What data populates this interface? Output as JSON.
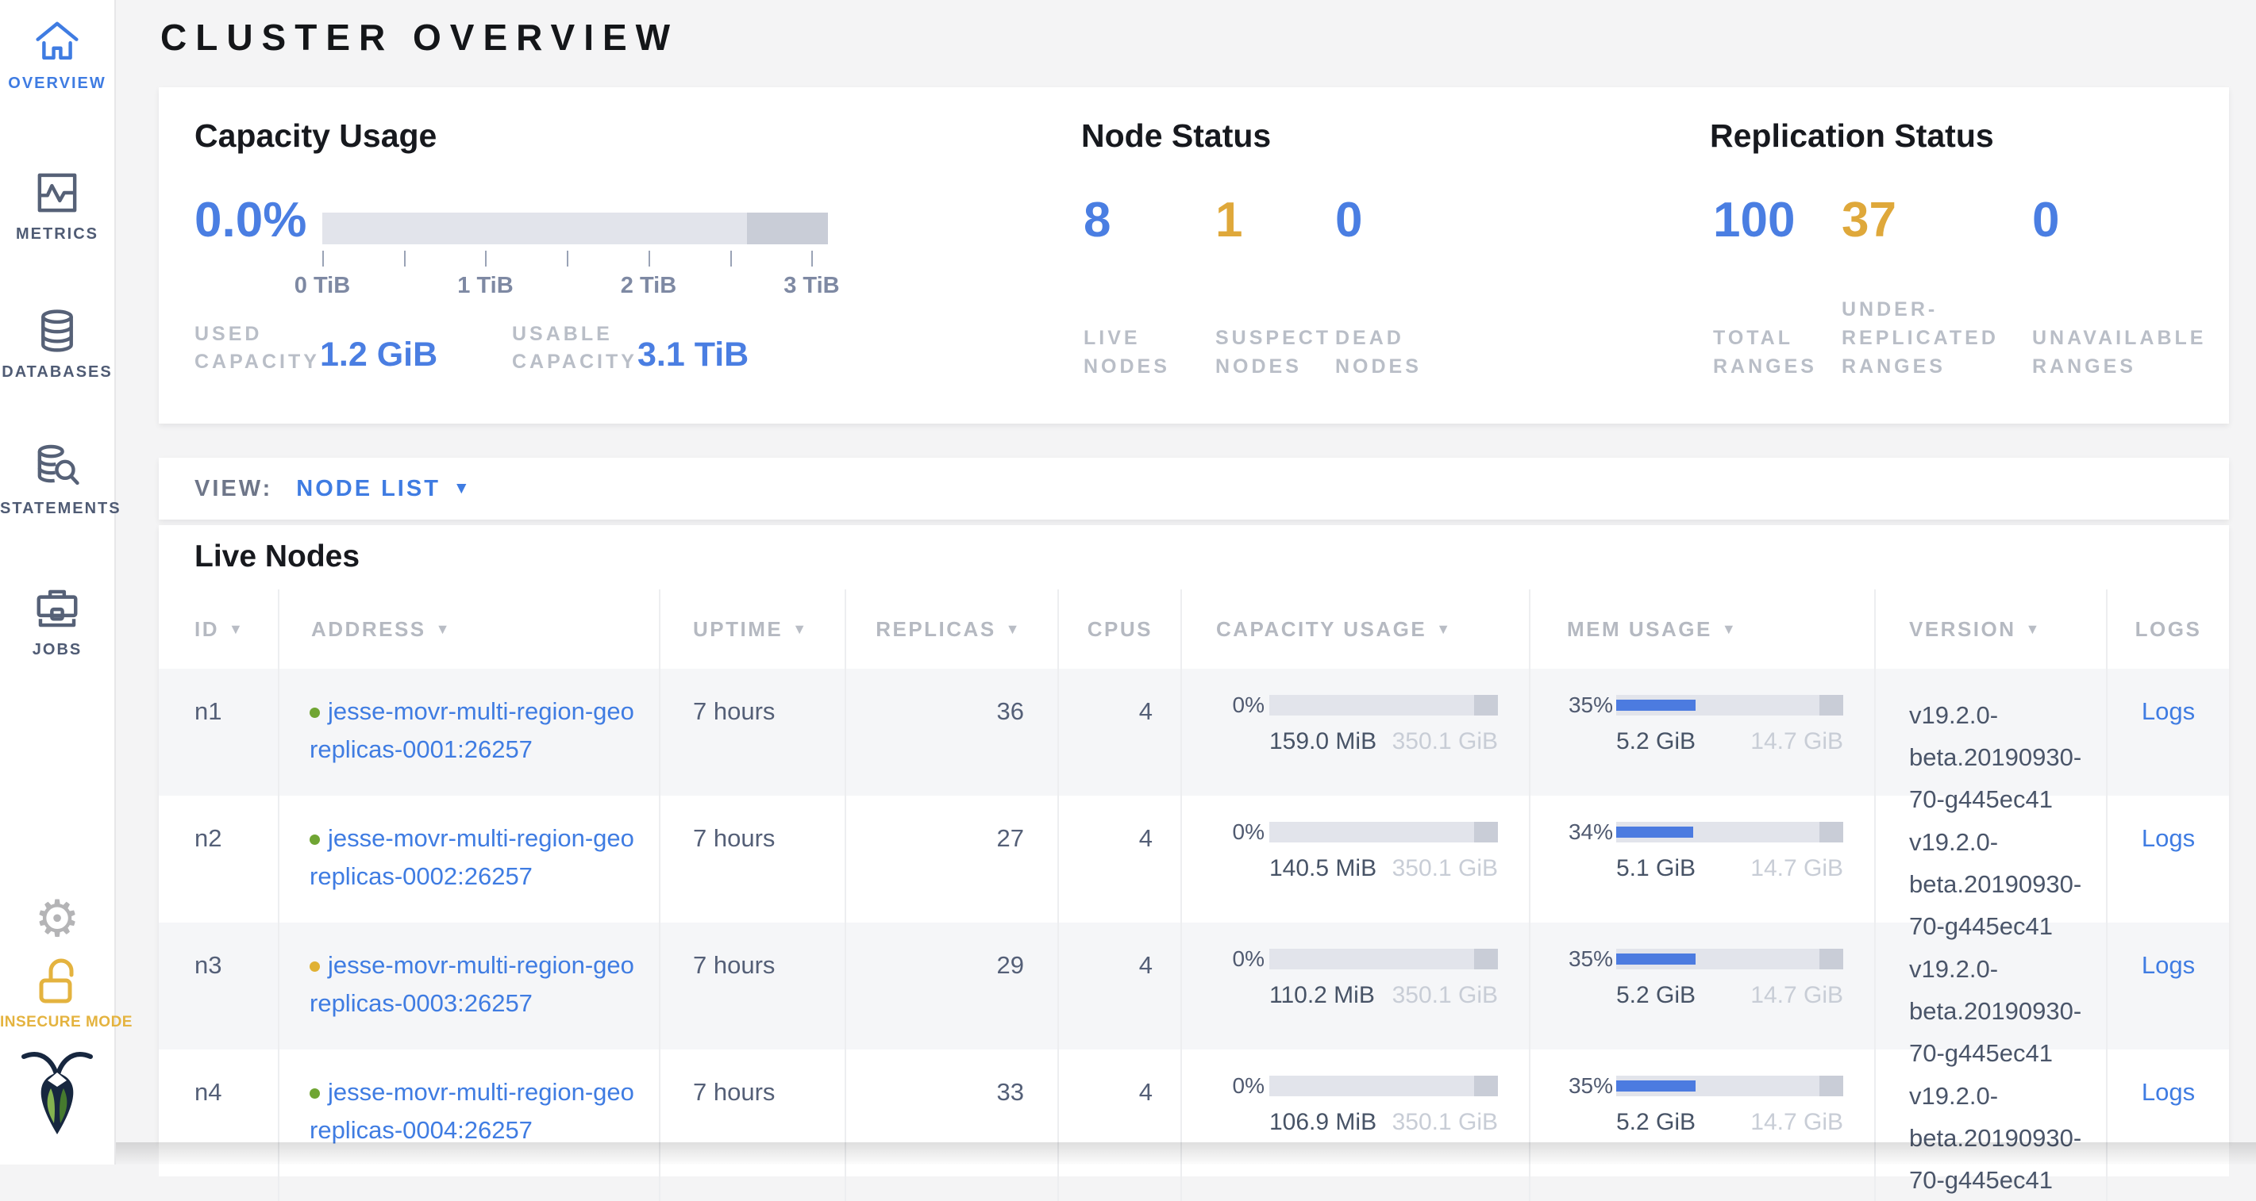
{
  "colors": {
    "accent_blue": "#3f7ce2",
    "metric_blue": "#4a7ee2",
    "warning_yellow": "#dfa83a",
    "live_dot_green": "#70a533",
    "suspect_dot_yellow": "#e0b133"
  },
  "sidebar": {
    "items": [
      {
        "label": "OVERVIEW",
        "icon": "home-icon",
        "active": true
      },
      {
        "label": "METRICS",
        "icon": "metrics-icon",
        "active": false
      },
      {
        "label": "DATABASES",
        "icon": "databases-icon",
        "active": false
      },
      {
        "label": "STATEMENTS",
        "icon": "statements-icon",
        "active": false
      },
      {
        "label": "JOBS",
        "icon": "jobs-icon",
        "active": false
      }
    ],
    "insecure_label": "INSECURE MODE"
  },
  "header": {
    "title": "CLUSTER OVERVIEW"
  },
  "summary": {
    "capacity": {
      "title": "Capacity Usage",
      "percent": "0.0%",
      "tick_labels": [
        "0 TiB",
        "1 TiB",
        "2 TiB",
        "3 TiB"
      ],
      "used": {
        "label": "USED CAPACITY",
        "value": "1.2 GiB"
      },
      "usable": {
        "label": "USABLE CAPACITY",
        "value": "3.1 TiB"
      }
    },
    "node_status": {
      "title": "Node Status",
      "metrics": [
        {
          "value": "8",
          "label": "LIVE NODES",
          "tone": "blue"
        },
        {
          "value": "1",
          "label": "SUSPECT NODES",
          "tone": "yellow"
        },
        {
          "value": "0",
          "label": "DEAD NODES",
          "tone": "blue"
        }
      ]
    },
    "replication_status": {
      "title": "Replication Status",
      "metrics": [
        {
          "value": "100",
          "label": "TOTAL RANGES",
          "tone": "blue"
        },
        {
          "value": "37",
          "label": "UNDER-REPLICATED RANGES",
          "tone": "yellow"
        },
        {
          "value": "0",
          "label": "UNAVAILABLE RANGES",
          "tone": "blue"
        }
      ]
    }
  },
  "view_bar": {
    "label": "VIEW:",
    "selected": "NODE LIST"
  },
  "live_nodes": {
    "title": "Live Nodes",
    "columns": [
      {
        "label": "ID",
        "sortable": true
      },
      {
        "label": "ADDRESS",
        "sortable": true
      },
      {
        "label": "UPTIME",
        "sortable": true
      },
      {
        "label": "REPLICAS",
        "sortable": true
      },
      {
        "label": "CPUS",
        "sortable": false
      },
      {
        "label": "CAPACITY USAGE",
        "sortable": true
      },
      {
        "label": "MEM USAGE",
        "sortable": true
      },
      {
        "label": "VERSION",
        "sortable": true
      },
      {
        "label": "LOGS",
        "sortable": false
      }
    ],
    "rows": [
      {
        "id": "n1",
        "status": "live",
        "address_lines": [
          "jesse-movr-multi-region-geo",
          "replicas-0001:26257"
        ],
        "uptime": "7 hours",
        "replicas": "36",
        "cpus": "4",
        "capacity": {
          "percent": "0%",
          "percent_value": 0,
          "used": "159.0 MiB",
          "total": "350.1 GiB"
        },
        "memory": {
          "percent": "35%",
          "percent_value": 35,
          "used": "5.2 GiB",
          "total": "14.7 GiB"
        },
        "version": "v19.2.0-beta.20190930-70-g445ec41",
        "logs_label": "Logs"
      },
      {
        "id": "n2",
        "status": "live",
        "address_lines": [
          "jesse-movr-multi-region-geo",
          "replicas-0002:26257"
        ],
        "uptime": "7 hours",
        "replicas": "27",
        "cpus": "4",
        "capacity": {
          "percent": "0%",
          "percent_value": 0,
          "used": "140.5 MiB",
          "total": "350.1 GiB"
        },
        "memory": {
          "percent": "34%",
          "percent_value": 34,
          "used": "5.1 GiB",
          "total": "14.7 GiB"
        },
        "version": "v19.2.0-beta.20190930-70-g445ec41",
        "logs_label": "Logs"
      },
      {
        "id": "n3",
        "status": "suspect",
        "address_lines": [
          "jesse-movr-multi-region-geo",
          "replicas-0003:26257"
        ],
        "uptime": "7 hours",
        "replicas": "29",
        "cpus": "4",
        "capacity": {
          "percent": "0%",
          "percent_value": 0,
          "used": "110.2 MiB",
          "total": "350.1 GiB"
        },
        "memory": {
          "percent": "35%",
          "percent_value": 35,
          "used": "5.2 GiB",
          "total": "14.7 GiB"
        },
        "version": "v19.2.0-beta.20190930-70-g445ec41",
        "logs_label": "Logs"
      },
      {
        "id": "n4",
        "status": "live",
        "address_lines": [
          "jesse-movr-multi-region-geo",
          "replicas-0004:26257"
        ],
        "uptime": "7 hours",
        "replicas": "33",
        "cpus": "4",
        "capacity": {
          "percent": "0%",
          "percent_value": 0,
          "used": "106.9 MiB",
          "total": "350.1 GiB"
        },
        "memory": {
          "percent": "35%",
          "percent_value": 35,
          "used": "5.2 GiB",
          "total": "14.7 GiB"
        },
        "version": "v19.2.0-beta.20190930-70-g445ec41",
        "logs_label": "Logs"
      }
    ]
  }
}
